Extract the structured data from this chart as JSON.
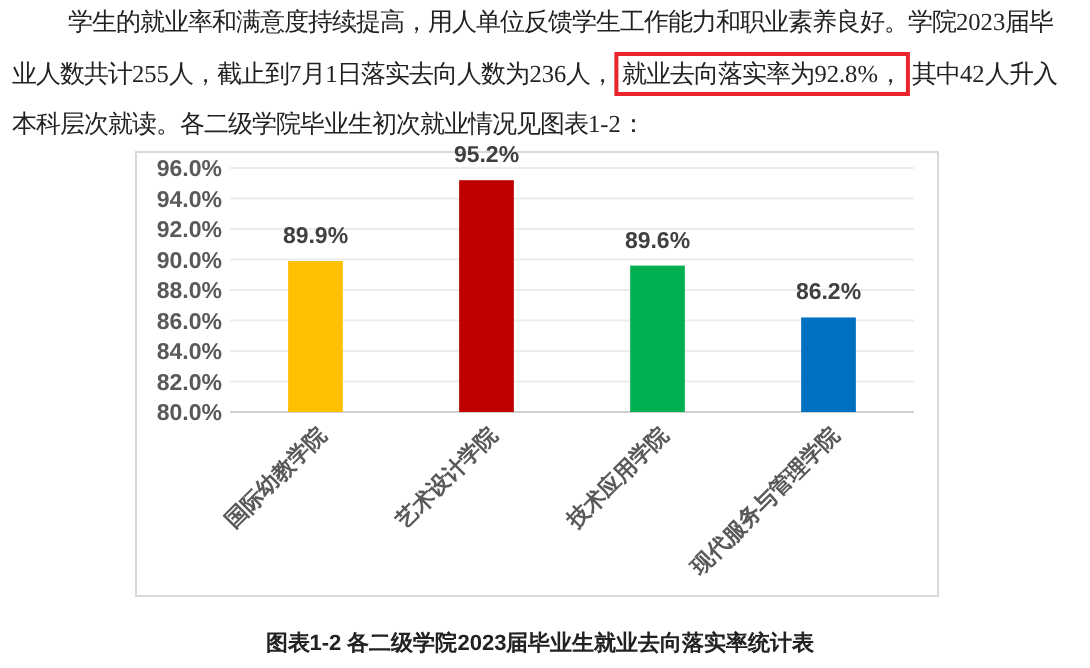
{
  "chart_data": {
    "type": "bar",
    "title": "图表1-2  各二级学院2023届毕业生就业去向落实率统计表",
    "annotations": [
      "学生的就业率和满意度持续提高，用人单位反馈学生工作能力和职业素养良好。学院2023届毕",
      "业人数共计255人，截止到7月1日落实去向人数为236人，",
      "就业去向落实率为92.8%，",
      "其中42人升入",
      "本科层次就读。各二级学院毕业生初次就业情况见图表1-2："
    ],
    "categories": [
      "国际幼教学院",
      "艺术设计学院",
      "技术应用学院",
      "现代服务与管理学院"
    ],
    "values": [
      89.9,
      95.2,
      89.6,
      86.2
    ],
    "colors": [
      "#ffc000",
      "#c00000",
      "#00b050",
      "#0070c0"
    ],
    "value_labels": [
      "89.9%",
      "95.2%",
      "89.6%",
      "86.2%"
    ],
    "ylim": [
      80,
      96
    ],
    "yticks": [
      {
        "value": 80,
        "label": "80.0%"
      },
      {
        "value": 82,
        "label": "82.0%"
      },
      {
        "value": 84,
        "label": "84.0%"
      },
      {
        "value": 86,
        "label": "86.0%"
      },
      {
        "value": 88,
        "label": "88.0%"
      },
      {
        "value": 90,
        "label": "90.0%"
      },
      {
        "value": 92,
        "label": "92.0%"
      },
      {
        "value": 94,
        "label": "94.0%"
      },
      {
        "value": 96,
        "label": "96.0%"
      }
    ],
    "grid": "y"
  }
}
